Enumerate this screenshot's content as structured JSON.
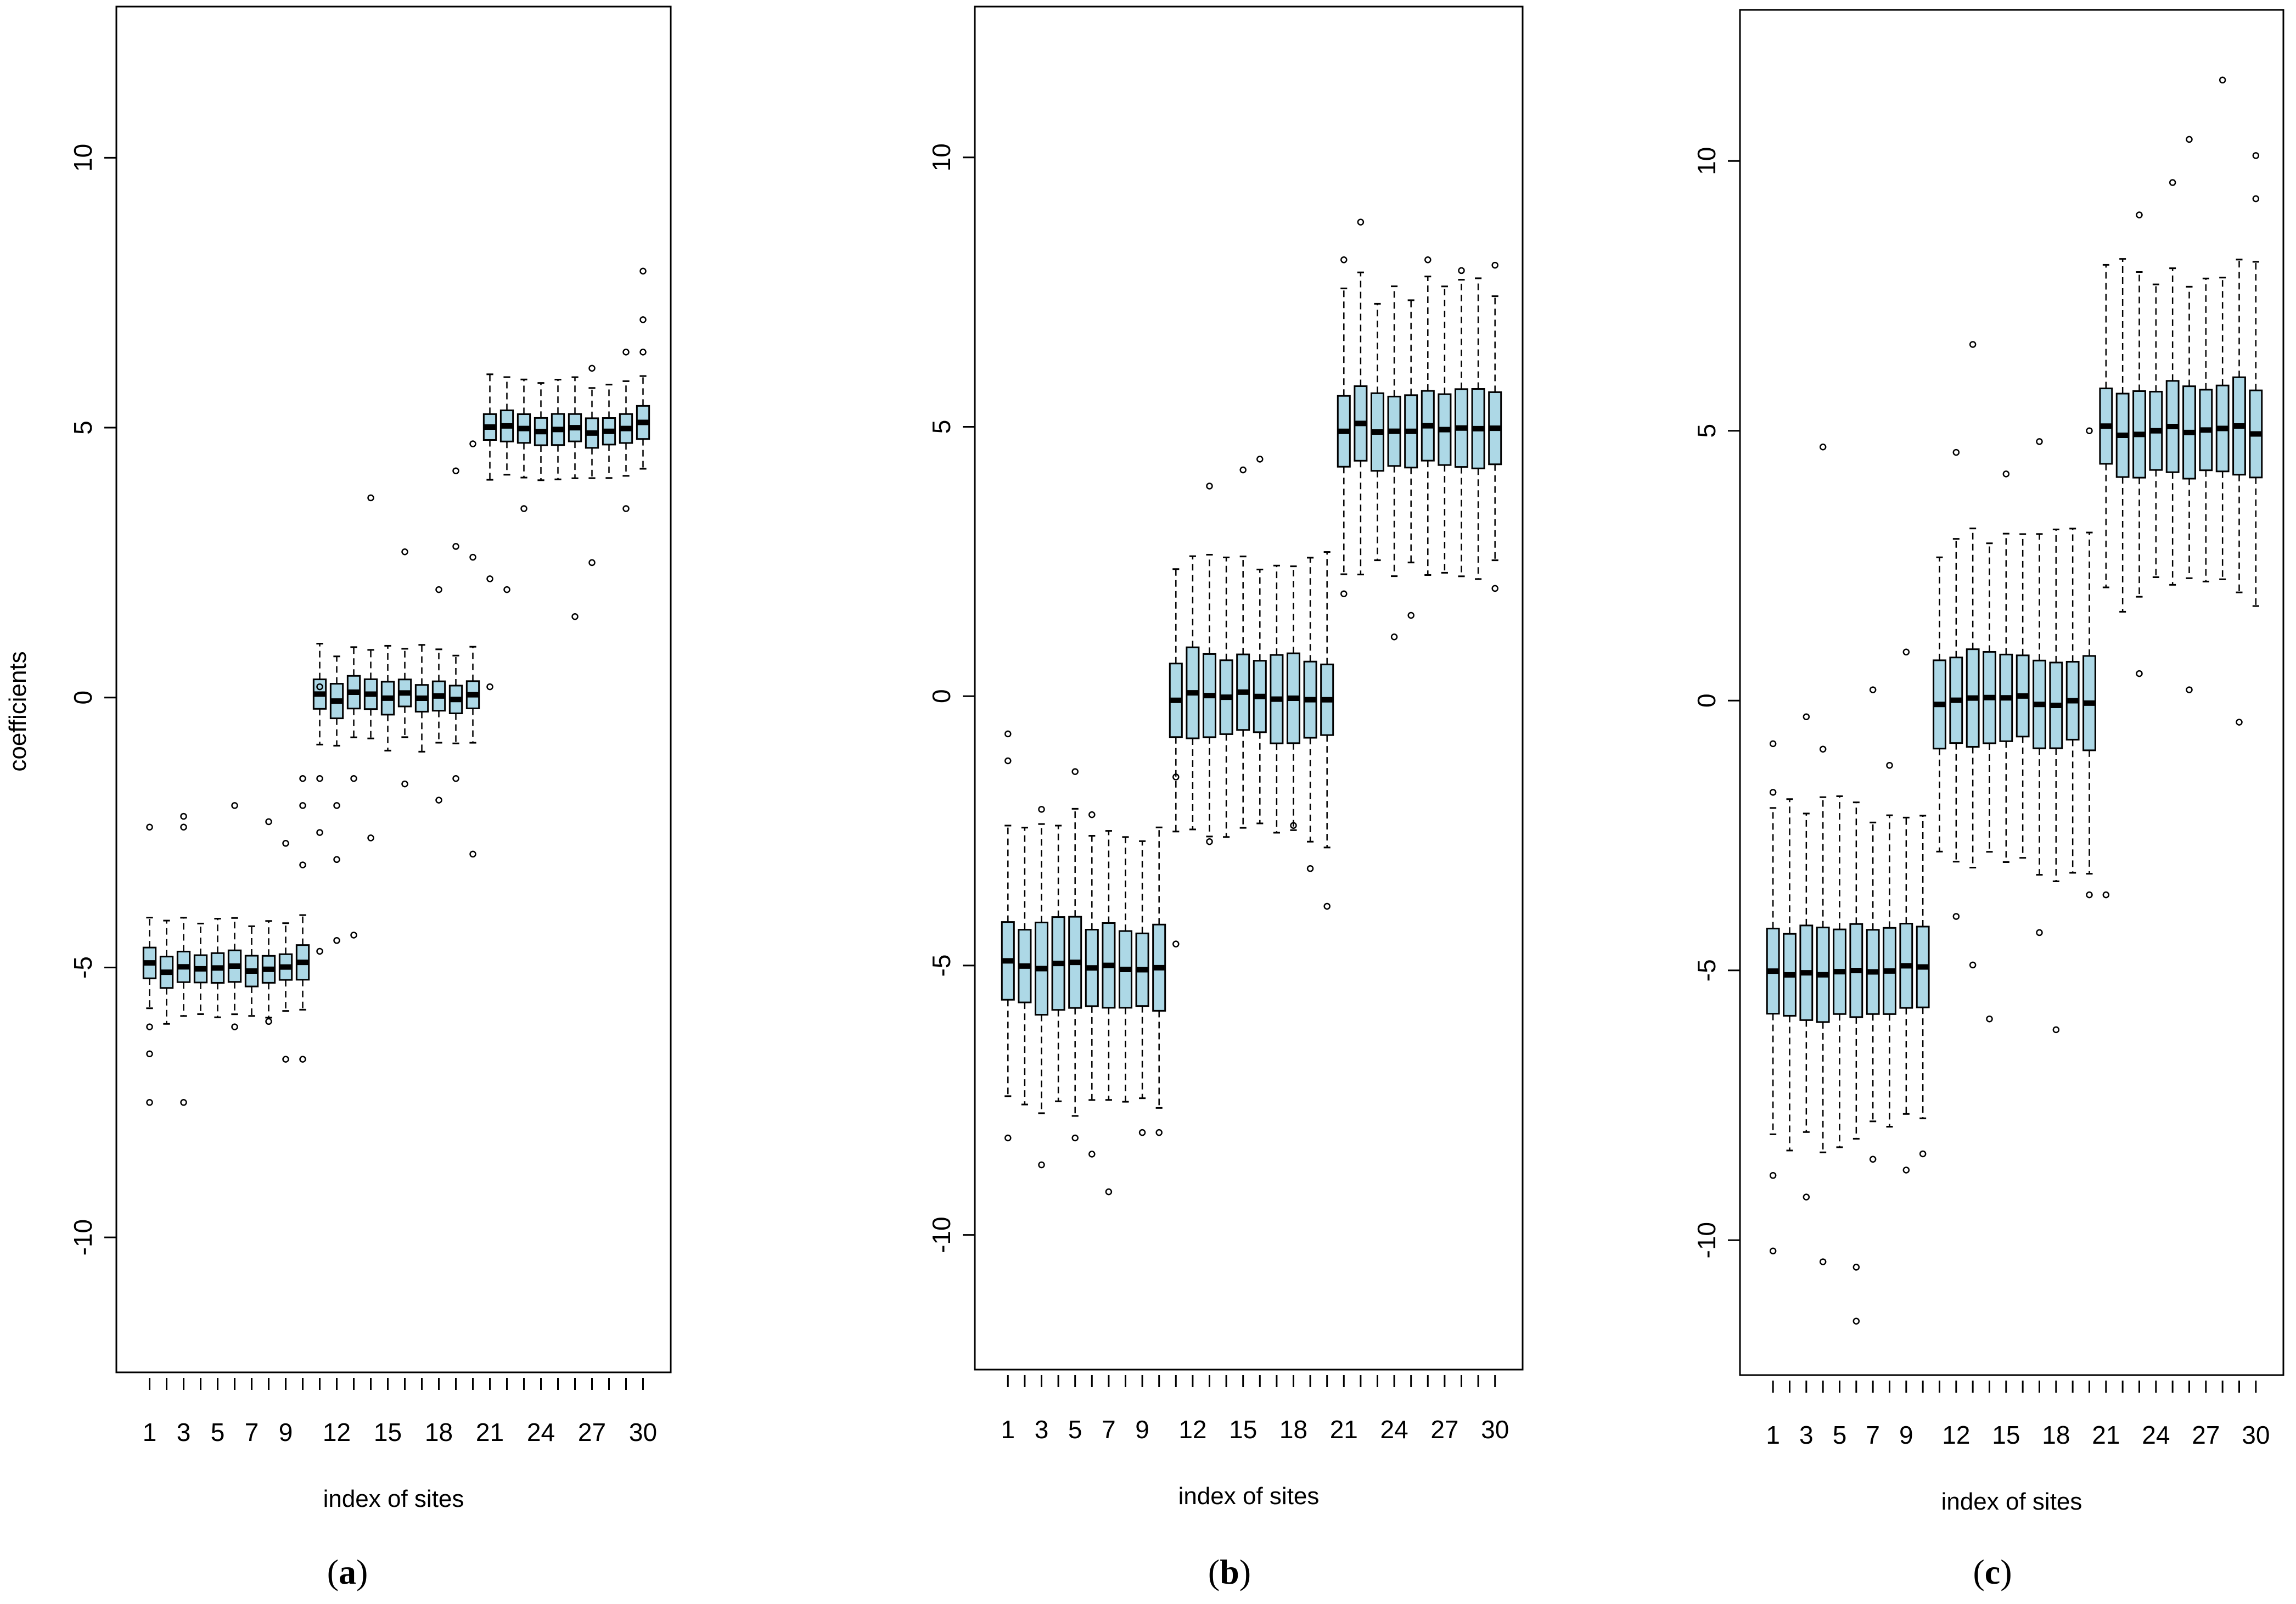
{
  "chart_data": [
    {
      "type": "box",
      "panel": "a",
      "caption": "(a)",
      "caption_letter": "a",
      "xlabel": "index of sites",
      "ylabel": "coefficients",
      "ylim": [
        -12.5,
        12.8
      ],
      "yticks": [
        -10,
        -5,
        0,
        5,
        10
      ],
      "xticklabels": [
        "1",
        "3",
        "5",
        "7",
        "9",
        "12",
        "15",
        "18",
        "21",
        "24",
        "27",
        "30"
      ],
      "xtick_positions": [
        1,
        3,
        5,
        7,
        9,
        12,
        15,
        18,
        21,
        24,
        27,
        30
      ],
      "n_sites": 30,
      "group_medians": [
        -5,
        0,
        5
      ],
      "q_half_spread": [
        0.28,
        0.28,
        0.28
      ],
      "whisker_half": [
        0.9,
        0.9,
        0.9
      ],
      "outliers": [
        {
          "site": 1,
          "values": [
            -2.4,
            -6.6,
            -7.5,
            -6.1
          ]
        },
        {
          "site": 3,
          "values": [
            -2.2,
            -2.4,
            -7.5
          ]
        },
        {
          "site": 6,
          "values": [
            -2.0,
            -6.1
          ]
        },
        {
          "site": 8,
          "values": [
            -2.3,
            -6.0
          ]
        },
        {
          "site": 9,
          "values": [
            -2.7,
            -6.7
          ]
        },
        {
          "site": 10,
          "values": [
            -2.0,
            -1.5,
            -3.1,
            -6.7
          ]
        },
        {
          "site": 11,
          "values": [
            -1.5,
            -2.5,
            -4.7,
            0.2
          ]
        },
        {
          "site": 12,
          "values": [
            -2.0,
            -3.0,
            -4.5
          ]
        },
        {
          "site": 13,
          "values": [
            -1.5,
            -4.4
          ]
        },
        {
          "site": 14,
          "values": [
            3.7,
            -2.6
          ]
        },
        {
          "site": 16,
          "values": [
            2.7,
            -1.6
          ]
        },
        {
          "site": 18,
          "values": [
            2.0,
            -1.9
          ]
        },
        {
          "site": 19,
          "values": [
            4.2,
            2.8,
            -1.5
          ]
        },
        {
          "site": 20,
          "values": [
            4.7,
            2.6,
            -2.9
          ]
        },
        {
          "site": 21,
          "values": [
            2.2,
            0.2
          ]
        },
        {
          "site": 22,
          "values": [
            2.0
          ]
        },
        {
          "site": 23,
          "values": [
            3.5
          ]
        },
        {
          "site": 26,
          "values": [
            1.5
          ]
        },
        {
          "site": 27,
          "values": [
            2.5,
            6.1
          ]
        },
        {
          "site": 29,
          "values": [
            6.4,
            3.5
          ]
        },
        {
          "site": 30,
          "values": [
            7.9,
            7.0,
            6.4
          ]
        }
      ]
    },
    {
      "type": "box",
      "panel": "b",
      "caption": "(b)",
      "caption_letter": "b",
      "xlabel": "index of sites",
      "ylabel": "",
      "ylim": [
        -12.5,
        12.8
      ],
      "yticks": [
        -10,
        -5,
        0,
        5,
        10
      ],
      "xticklabels": [
        "1",
        "3",
        "5",
        "7",
        "9",
        "12",
        "15",
        "18",
        "21",
        "24",
        "27",
        "30"
      ],
      "xtick_positions": [
        1,
        3,
        5,
        7,
        9,
        12,
        15,
        18,
        21,
        24,
        27,
        30
      ],
      "n_sites": 30,
      "group_medians": [
        -5,
        0,
        5
      ],
      "q_half_spread": [
        0.75,
        0.75,
        0.75
      ],
      "whisker_half": [
        2.6,
        2.6,
        2.6
      ],
      "outliers": [
        {
          "site": 1,
          "values": [
            -0.7,
            -1.2,
            -8.2
          ]
        },
        {
          "site": 3,
          "values": [
            -2.1,
            -8.7
          ]
        },
        {
          "site": 5,
          "values": [
            -1.4,
            -8.2
          ]
        },
        {
          "site": 6,
          "values": [
            -2.2,
            -8.5
          ]
        },
        {
          "site": 7,
          "values": [
            -9.2
          ]
        },
        {
          "site": 9,
          "values": [
            -8.1
          ]
        },
        {
          "site": 10,
          "values": [
            -8.1
          ]
        },
        {
          "site": 11,
          "values": [
            -1.5,
            -4.6
          ]
        },
        {
          "site": 13,
          "values": [
            3.9,
            -2.7
          ]
        },
        {
          "site": 15,
          "values": [
            4.2
          ]
        },
        {
          "site": 16,
          "values": [
            4.4
          ]
        },
        {
          "site": 18,
          "values": [
            -2.4
          ]
        },
        {
          "site": 19,
          "values": [
            -3.2
          ]
        },
        {
          "site": 20,
          "values": [
            -3.9
          ]
        },
        {
          "site": 21,
          "values": [
            8.1,
            1.9
          ]
        },
        {
          "site": 22,
          "values": [
            8.8
          ]
        },
        {
          "site": 24,
          "values": [
            1.1
          ]
        },
        {
          "site": 25,
          "values": [
            1.5
          ]
        },
        {
          "site": 26,
          "values": [
            8.1
          ]
        },
        {
          "site": 28,
          "values": [
            7.9
          ]
        },
        {
          "site": 30,
          "values": [
            8.0,
            2.0
          ]
        }
      ]
    },
    {
      "type": "box",
      "panel": "c",
      "caption": "(c)",
      "caption_letter": "c",
      "xlabel": "index of sites",
      "ylabel": "",
      "ylim": [
        -12.5,
        12.8
      ],
      "yticks": [
        -10,
        -5,
        0,
        5,
        10
      ],
      "xticklabels": [
        "1",
        "3",
        "5",
        "7",
        "9",
        "12",
        "15",
        "18",
        "21",
        "24",
        "27",
        "30"
      ],
      "xtick_positions": [
        1,
        3,
        5,
        7,
        9,
        12,
        15,
        18,
        21,
        24,
        27,
        30
      ],
      "n_sites": 30,
      "group_medians": [
        -5,
        0,
        5
      ],
      "q_half_spread": [
        0.8,
        0.8,
        0.8
      ],
      "whisker_half": [
        3.0,
        3.0,
        3.0
      ],
      "outliers": [
        {
          "site": 1,
          "values": [
            -0.8,
            -1.7,
            -8.8,
            -10.2
          ]
        },
        {
          "site": 3,
          "values": [
            -0.3,
            -9.2
          ]
        },
        {
          "site": 4,
          "values": [
            4.7,
            -0.9,
            -10.4
          ]
        },
        {
          "site": 6,
          "values": [
            -11.5,
            -10.5
          ]
        },
        {
          "site": 7,
          "values": [
            0.2,
            -8.5
          ]
        },
        {
          "site": 8,
          "values": [
            -1.2
          ]
        },
        {
          "site": 9,
          "values": [
            0.9,
            -8.7
          ]
        },
        {
          "site": 10,
          "values": [
            -8.4
          ]
        },
        {
          "site": 12,
          "values": [
            4.6,
            -4.0
          ]
        },
        {
          "site": 13,
          "values": [
            6.6,
            -4.9
          ]
        },
        {
          "site": 14,
          "values": [
            -5.9
          ]
        },
        {
          "site": 15,
          "values": [
            4.2
          ]
        },
        {
          "site": 17,
          "values": [
            4.8,
            -4.3
          ]
        },
        {
          "site": 18,
          "values": [
            -6.1
          ]
        },
        {
          "site": 20,
          "values": [
            5.0,
            -3.6
          ]
        },
        {
          "site": 21,
          "values": [
            -3.6
          ]
        },
        {
          "site": 23,
          "values": [
            9.0,
            0.5
          ]
        },
        {
          "site": 25,
          "values": [
            9.6
          ]
        },
        {
          "site": 26,
          "values": [
            10.4,
            0.2
          ]
        },
        {
          "site": 28,
          "values": [
            11.5
          ]
        },
        {
          "site": 29,
          "values": [
            -0.4
          ]
        },
        {
          "site": 30,
          "values": [
            10.1,
            9.3
          ]
        }
      ]
    }
  ]
}
